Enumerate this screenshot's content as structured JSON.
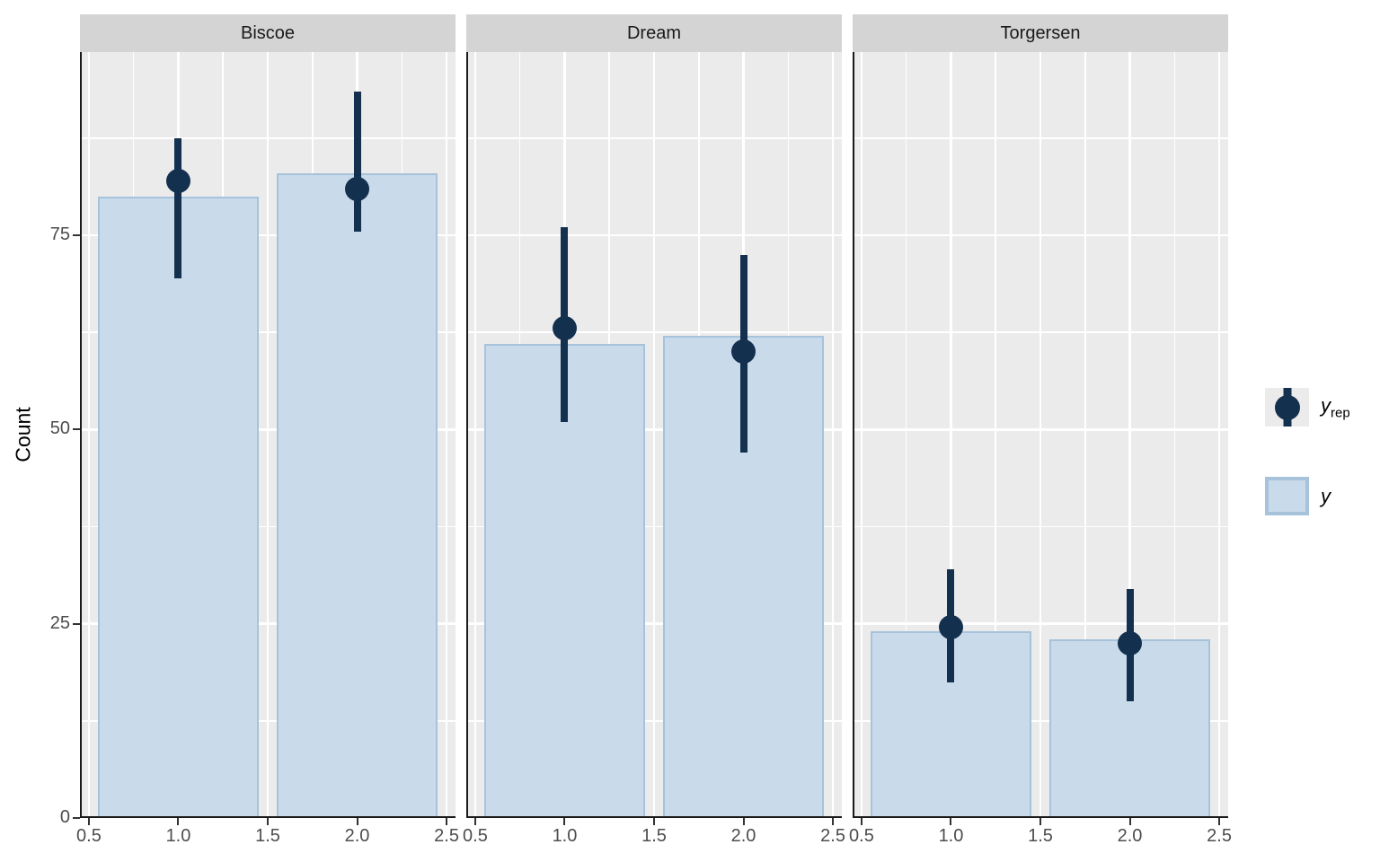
{
  "chart_data": {
    "type": "bar",
    "title": "",
    "ylabel": "Count",
    "xlabel": "",
    "y_ticks": [
      0,
      25,
      50,
      75
    ],
    "y_minor": [
      12.5,
      37.5,
      62.5,
      87.5
    ],
    "x_ticks": [
      "0.5",
      "1.0",
      "1.5",
      "2.0",
      "2.5"
    ],
    "x_tick_values": [
      0.5,
      1.0,
      1.5,
      2.0,
      2.5
    ],
    "x_minor": [
      0.75,
      1.25,
      1.75,
      2.25
    ],
    "xlim": [
      0.45,
      2.55
    ],
    "ylim": [
      0,
      98.6
    ],
    "bar_width": 0.9,
    "grid": true,
    "legend_position": "right",
    "facets": [
      {
        "label": "Biscoe",
        "bars": [
          {
            "x": 1,
            "count": 80
          },
          {
            "x": 2,
            "count": 83
          }
        ],
        "points": [
          {
            "x": 1,
            "est": 82,
            "lo": 69.5,
            "hi": 87.5
          },
          {
            "x": 2,
            "est": 81,
            "lo": 75.5,
            "hi": 93.5
          }
        ]
      },
      {
        "label": "Dream",
        "bars": [
          {
            "x": 1,
            "count": 61
          },
          {
            "x": 2,
            "count": 62
          }
        ],
        "points": [
          {
            "x": 1,
            "est": 63,
            "lo": 51,
            "hi": 76
          },
          {
            "x": 2,
            "est": 60,
            "lo": 47,
            "hi": 72.5
          }
        ]
      },
      {
        "label": "Torgersen",
        "bars": [
          {
            "x": 1,
            "count": 24
          },
          {
            "x": 2,
            "count": 23
          }
        ],
        "points": [
          {
            "x": 1,
            "est": 24.5,
            "lo": 17.5,
            "hi": 32
          },
          {
            "x": 2,
            "est": 22.5,
            "lo": 15,
            "hi": 29.5
          }
        ]
      }
    ],
    "legend": [
      {
        "main": "y",
        "sub": "rep",
        "glyph": "pointrange"
      },
      {
        "main": "y",
        "sub": "",
        "glyph": "bar"
      }
    ]
  },
  "colors": {
    "bar_fill": "#C9DAEA",
    "bar_border": "#A6C3DB",
    "point": "#14304F",
    "panel_bg": "#EBEBEB",
    "strip_bg": "#D4D4D4",
    "gridline": "#FFFFFF",
    "axis_line": "#1A1A1A",
    "tick_mark": "#333333",
    "tick_label": "#4D4D4D",
    "background": "#FFFFFF",
    "legend_key_bg": "#EBEBEB"
  }
}
